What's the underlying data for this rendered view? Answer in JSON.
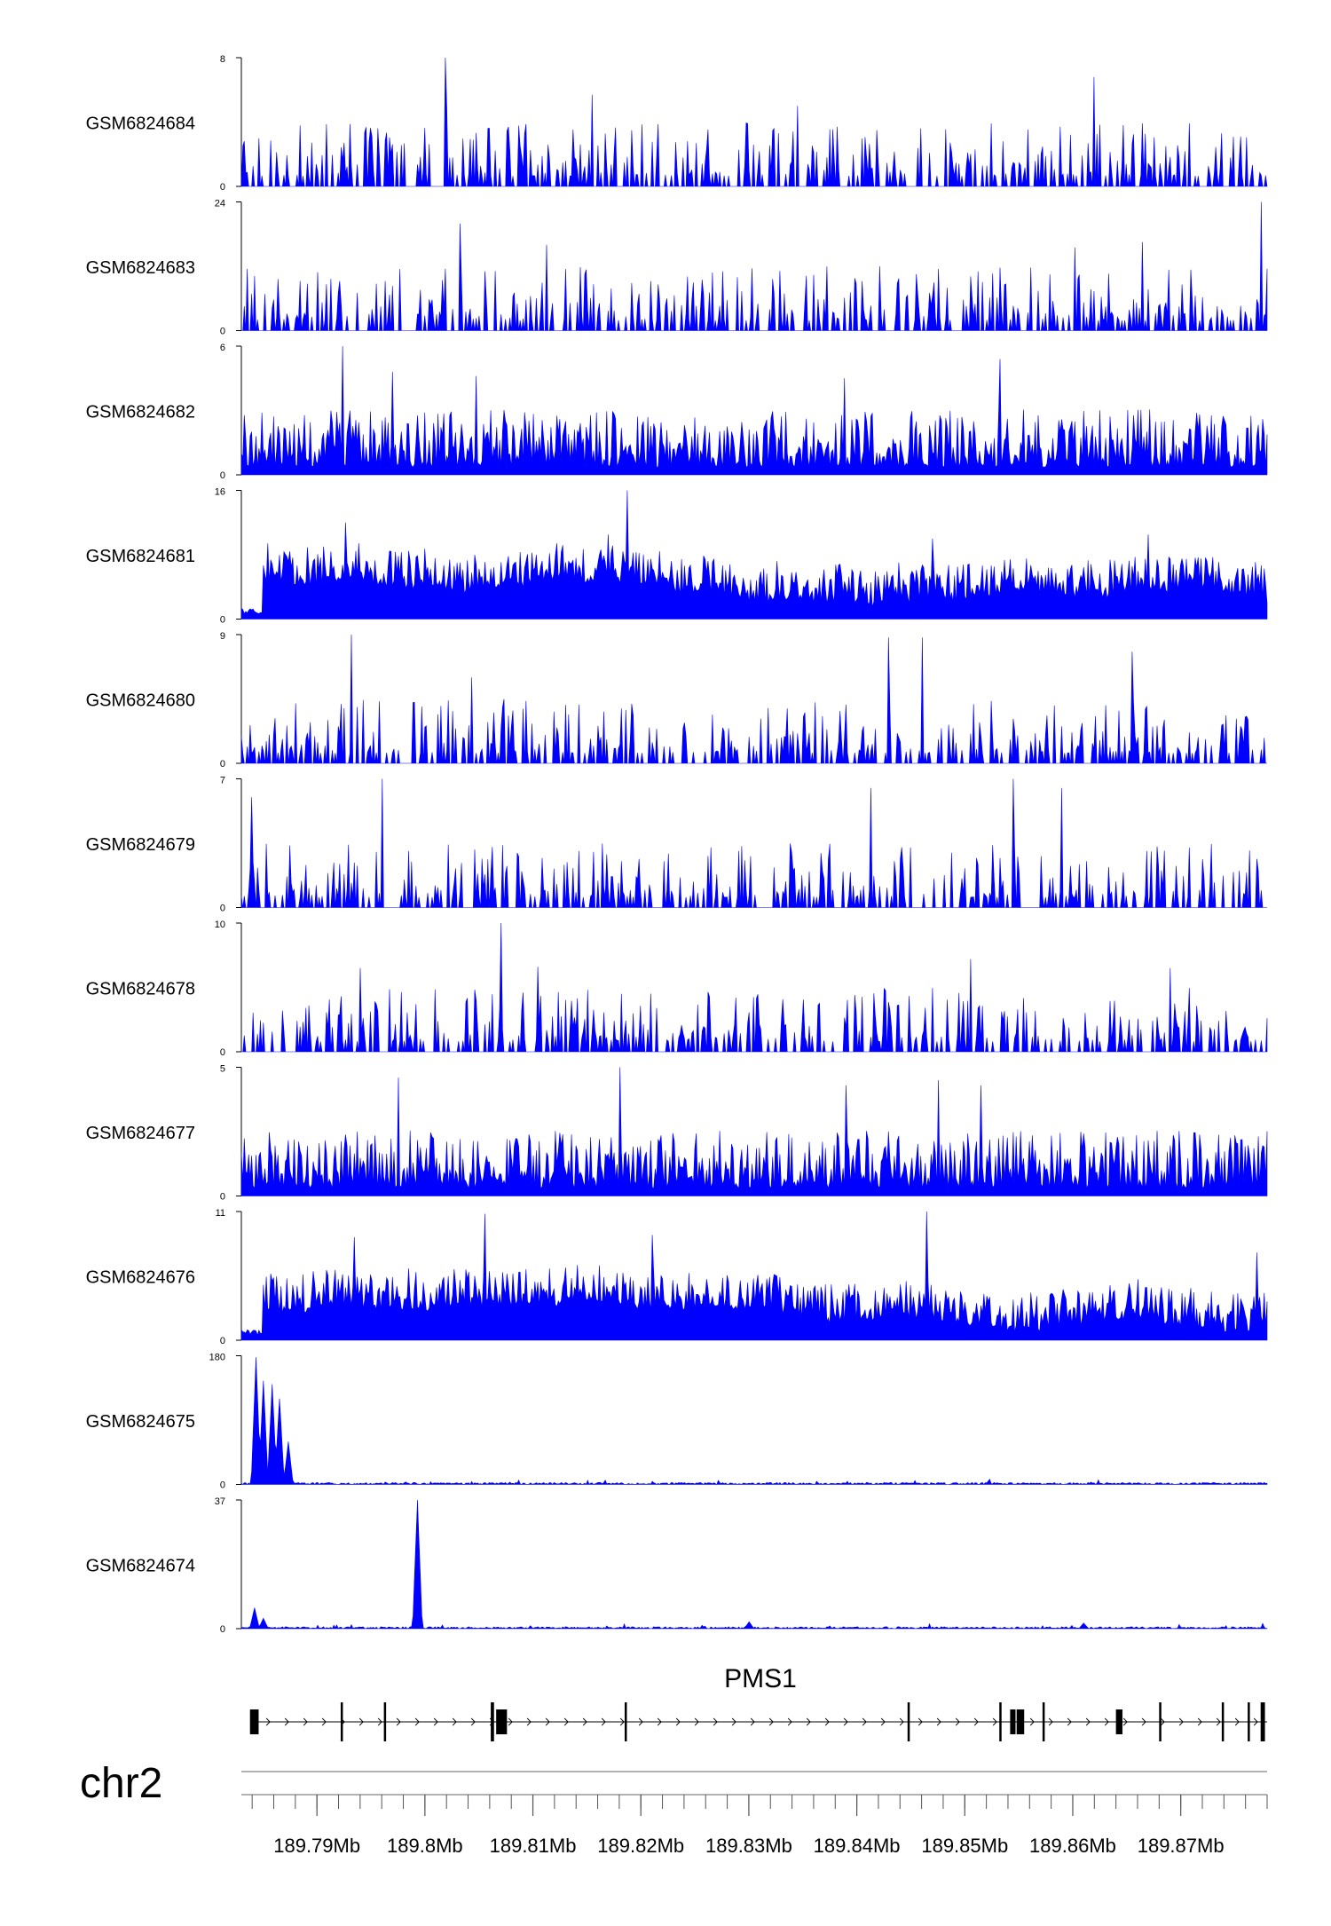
{
  "chart_data": {
    "type": "area",
    "chromosome": "chr2",
    "x_unit": "Mb",
    "xlim": [
      189.783,
      189.878
    ],
    "x_ticks": [
      189.79,
      189.8,
      189.81,
      189.82,
      189.83,
      189.84,
      189.85,
      189.86,
      189.87
    ],
    "x_tick_labels": [
      "189.79Mb",
      "189.8Mb",
      "189.81Mb",
      "189.82Mb",
      "189.83Mb",
      "189.84Mb",
      "189.85Mb",
      "189.86Mb",
      "189.87Mb"
    ],
    "color": "#0000ff",
    "tracks": [
      {
        "name": "GSM6824684",
        "ymax": 8,
        "ymin_label": "0",
        "ymax_label": "8",
        "profile": "sparse",
        "peaks": [
          [
            189.8019,
            8.0
          ],
          [
            189.862,
            6.8
          ],
          [
            189.8155,
            5.7
          ],
          [
            189.802,
            5.0
          ],
          [
            189.8345,
            5.0
          ]
        ]
      },
      {
        "name": "GSM6824683",
        "ymax": 24,
        "ymin_label": "0",
        "ymax_label": "24",
        "profile": "sparse",
        "peaks": [
          [
            189.8774,
            24.0
          ],
          [
            189.8032,
            20.0
          ],
          [
            189.8665,
            16.5
          ],
          [
            189.8113,
            16.0
          ],
          [
            189.8602,
            15.5
          ]
        ]
      },
      {
        "name": "GSM6824682",
        "ymax": 6,
        "ymin_label": "0",
        "ymax_label": "6",
        "profile": "dense",
        "peaks": [
          [
            189.7924,
            6.0
          ],
          [
            189.8532,
            5.4
          ],
          [
            189.797,
            4.8
          ],
          [
            189.8047,
            4.6
          ],
          [
            189.8388,
            4.5
          ]
        ]
      },
      {
        "name": "GSM6824681",
        "ymax": 16,
        "ymin_label": "0",
        "ymax_label": "16",
        "profile": "broad",
        "peaks": [
          [
            189.8188,
            16.0
          ],
          [
            189.7926,
            12.0
          ],
          [
            189.817,
            10.5
          ],
          [
            189.847,
            10.0
          ],
          [
            189.867,
            10.5
          ]
        ]
      },
      {
        "name": "GSM6824680",
        "ymax": 9,
        "ymin_label": "0",
        "ymax_label": "9",
        "profile": "sparse",
        "peaks": [
          [
            189.7932,
            9.0
          ],
          [
            189.843,
            8.8
          ],
          [
            189.846,
            8.8
          ],
          [
            189.8655,
            7.8
          ],
          [
            189.8044,
            6.0
          ]
        ]
      },
      {
        "name": "GSM6824679",
        "ymax": 7,
        "ymin_label": "0",
        "ymax_label": "7",
        "profile": "sparse",
        "peaks": [
          [
            189.796,
            7.0
          ],
          [
            189.8545,
            7.0
          ],
          [
            189.8413,
            6.5
          ],
          [
            189.859,
            6.5
          ],
          [
            189.784,
            6.0
          ]
        ]
      },
      {
        "name": "GSM6824678",
        "ymax": 10,
        "ymin_label": "0",
        "ymax_label": "10",
        "profile": "sparse",
        "peaks": [
          [
            189.807,
            10.0
          ],
          [
            189.8505,
            7.2
          ],
          [
            189.794,
            6.5
          ],
          [
            189.8105,
            6.6
          ],
          [
            189.869,
            6.5
          ]
        ]
      },
      {
        "name": "GSM6824677",
        "ymax": 5,
        "ymin_label": "0",
        "ymax_label": "5",
        "profile": "dense",
        "peaks": [
          [
            189.818,
            5.0
          ],
          [
            189.7975,
            4.6
          ],
          [
            189.8475,
            4.5
          ],
          [
            189.839,
            4.3
          ],
          [
            189.8515,
            4.3
          ]
        ]
      },
      {
        "name": "GSM6824676",
        "ymax": 11,
        "ymin_label": "0",
        "ymax_label": "11",
        "profile": "broad",
        "peaks": [
          [
            189.8465,
            11.0
          ],
          [
            189.8055,
            10.8
          ],
          [
            189.821,
            9.0
          ],
          [
            189.7935,
            8.8
          ],
          [
            189.877,
            7.5
          ]
        ]
      },
      {
        "name": "GSM6824675",
        "ymax": 180,
        "ymin_label": "0",
        "ymax_label": "180",
        "profile": "single",
        "peaks": [
          [
            189.7843,
            178.0
          ],
          [
            189.7851,
            145.0
          ],
          [
            189.7858,
            140.0
          ],
          [
            189.7866,
            120.0
          ],
          [
            189.7874,
            60.0
          ]
        ]
      },
      {
        "name": "GSM6824674",
        "ymax": 37,
        "ymin_label": "0",
        "ymax_label": "37",
        "profile": "single",
        "peaks": [
          [
            189.7993,
            37.0
          ],
          [
            189.7842,
            6.0
          ],
          [
            189.785,
            3.0
          ],
          [
            189.83,
            2.0
          ],
          [
            189.861,
            1.6
          ]
        ]
      }
    ],
    "gene": {
      "name": "PMS1",
      "strand": "+",
      "start": 189.784,
      "end": 189.878,
      "exons": [
        [
          189.7838,
          189.7846
        ],
        [
          189.7922,
          189.7924
        ],
        [
          189.7962,
          189.7964
        ],
        [
          189.8061,
          189.8064
        ],
        [
          189.8066,
          189.8076
        ],
        [
          189.8185,
          189.8187
        ],
        [
          189.8447,
          189.8449
        ],
        [
          189.8532,
          189.8534
        ],
        [
          189.8542,
          189.8547
        ],
        [
          189.8548,
          189.8555
        ],
        [
          189.8572,
          189.8573
        ],
        [
          189.864,
          189.8646
        ],
        [
          189.868,
          189.8682
        ],
        [
          189.8738,
          189.874
        ],
        [
          189.8762,
          189.8764
        ],
        [
          189.8774,
          189.8778
        ]
      ]
    }
  }
}
